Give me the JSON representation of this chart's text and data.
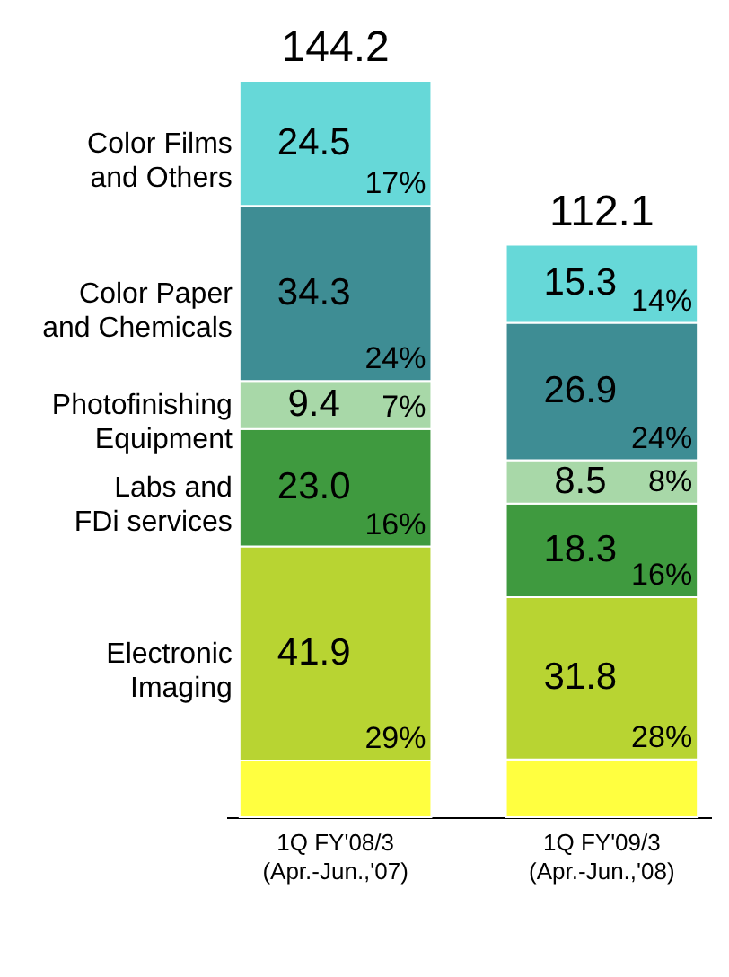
{
  "chart_data": {
    "type": "bar",
    "stacked": true,
    "categories": [
      "1Q FY'08/3\n(Apr.-Jun.,'07)",
      "1Q FY'09/3\n(Apr.-Jun.,'08)"
    ],
    "series": [
      {
        "color": "#ffff40",
        "values": [
          11.1,
          11.3
        ],
        "value_labels": [
          null,
          null
        ]
      },
      {
        "name": "Electronic\nImaging",
        "color": "#b8d432",
        "values": [
          41.9,
          31.8
        ],
        "value_labels": [
          "41.9",
          "31.8"
        ]
      },
      {
        "name": "Labs and\nFDi services",
        "color": "#3f9a3f",
        "values": [
          23.0,
          18.3
        ],
        "value_labels": [
          "23.0",
          "18.3"
        ]
      },
      {
        "name": "Photofinishing\nEquipment",
        "color": "#a8d8a8",
        "values": [
          9.4,
          8.5
        ],
        "value_labels": [
          "9.4",
          "8.5"
        ]
      },
      {
        "name": "Color Paper\nand Chemicals",
        "color": "#3e8d94",
        "values": [
          34.3,
          26.9
        ],
        "value_labels": [
          "34.3",
          "26.9"
        ]
      },
      {
        "name": "Color Films\nand Others",
        "color": "#66d8d8",
        "values": [
          24.5,
          15.3
        ],
        "value_labels": [
          "24.5",
          "15.3"
        ]
      }
    ],
    "totals": [
      "144.2",
      "112.1"
    ],
    "annotations": [
      "29%",
      "16%",
      "7%",
      "24%",
      "17%",
      "28%",
      "16%",
      "8%",
      "24%",
      "14%"
    ]
  }
}
